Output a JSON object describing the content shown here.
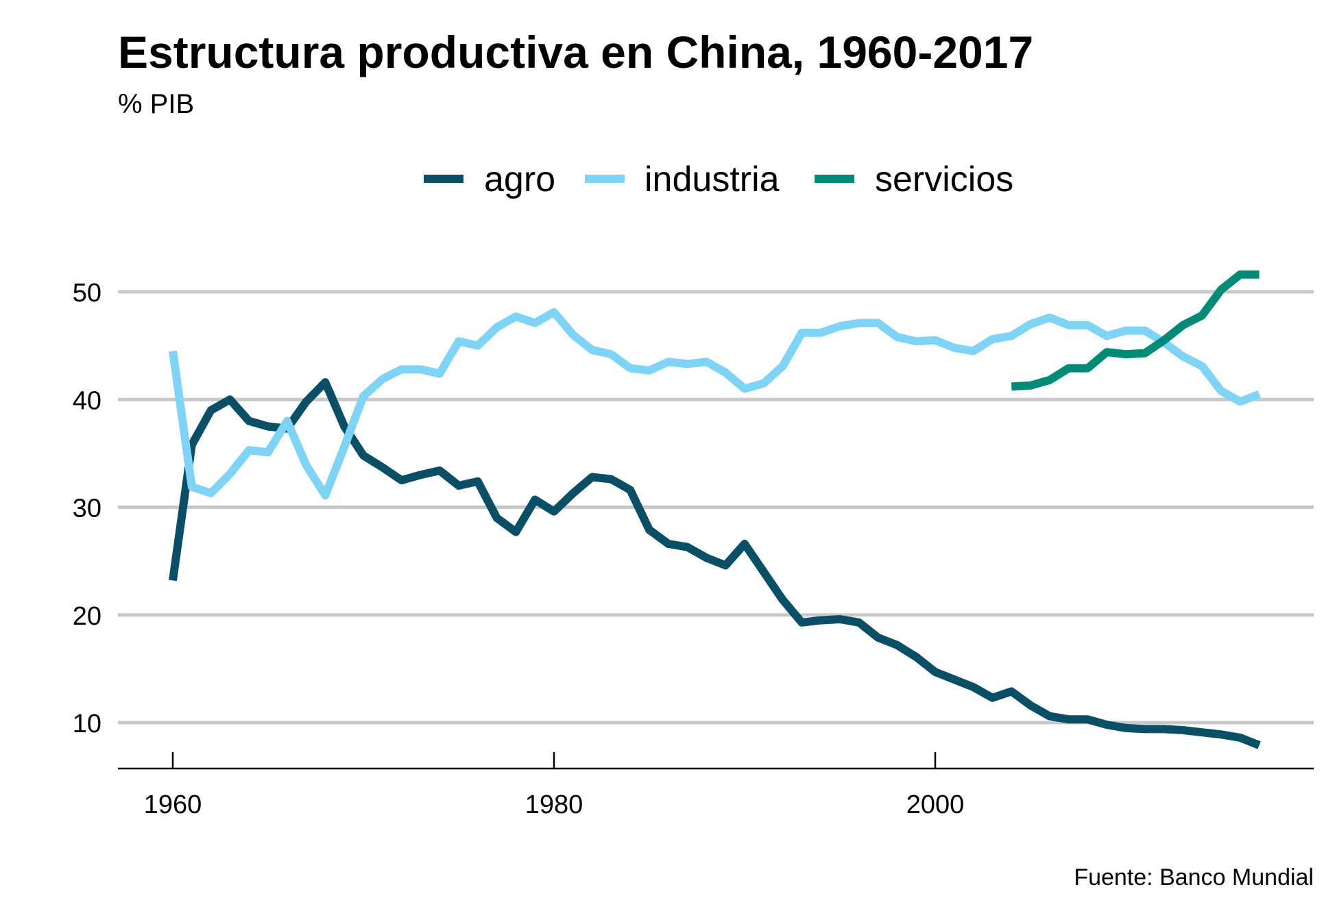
{
  "chart_data": {
    "type": "line",
    "title": "Estructura productiva en China, 1960-2017",
    "subtitle": "% PIB",
    "source": "Fuente: Banco Mundial",
    "xlabel": "",
    "ylabel": "",
    "xlim": [
      1957,
      2020
    ],
    "ylim": [
      5.8,
      55
    ],
    "xticks": [
      1960,
      1980,
      2000
    ],
    "yticks": [
      10,
      20,
      30,
      40,
      50
    ],
    "grid": "horizontal",
    "legend_position": "top",
    "series": [
      {
        "name": "agro",
        "color": "#0b4f66",
        "x": [
          1960,
          1961,
          1962,
          1963,
          1964,
          1965,
          1966,
          1967,
          1968,
          1969,
          1970,
          1971,
          1972,
          1973,
          1974,
          1975,
          1976,
          1977,
          1978,
          1979,
          1980,
          1981,
          1982,
          1983,
          1984,
          1985,
          1986,
          1987,
          1988,
          1989,
          1990,
          1991,
          1992,
          1993,
          1994,
          1995,
          1996,
          1997,
          1998,
          1999,
          2000,
          2001,
          2002,
          2003,
          2004,
          2005,
          2006,
          2007,
          2008,
          2009,
          2010,
          2011,
          2012,
          2013,
          2014,
          2015,
          2016,
          2017
        ],
        "values": [
          23.2,
          35.8,
          39.0,
          40.0,
          38.0,
          37.5,
          37.3,
          39.8,
          41.6,
          37.5,
          34.8,
          33.7,
          32.5,
          33.0,
          33.4,
          32.0,
          32.4,
          29.0,
          27.7,
          30.7,
          29.6,
          31.3,
          32.8,
          32.6,
          31.6,
          27.9,
          26.6,
          26.3,
          25.3,
          24.6,
          26.6,
          24.0,
          21.4,
          19.3,
          19.5,
          19.6,
          19.3,
          17.9,
          17.2,
          16.1,
          14.7,
          14.0,
          13.3,
          12.3,
          12.9,
          11.6,
          10.6,
          10.3,
          10.3,
          9.8,
          9.5,
          9.4,
          9.4,
          9.3,
          9.1,
          8.9,
          8.6,
          7.9
        ]
      },
      {
        "name": "industria",
        "color": "#7fd3f5",
        "x": [
          1960,
          1961,
          1962,
          1963,
          1964,
          1965,
          1966,
          1967,
          1968,
          1969,
          1970,
          1971,
          1972,
          1973,
          1974,
          1975,
          1976,
          1977,
          1978,
          1979,
          1980,
          1981,
          1982,
          1983,
          1984,
          1985,
          1986,
          1987,
          1988,
          1989,
          1990,
          1991,
          1992,
          1993,
          1994,
          1995,
          1996,
          1997,
          1998,
          1999,
          2000,
          2001,
          2002,
          2003,
          2004,
          2005,
          2006,
          2007,
          2008,
          2009,
          2010,
          2011,
          2012,
          2013,
          2014,
          2015,
          2016,
          2017
        ],
        "values": [
          44.5,
          31.9,
          31.3,
          33.1,
          35.3,
          35.1,
          38.0,
          33.9,
          31.1,
          35.6,
          40.3,
          41.9,
          42.8,
          42.8,
          42.4,
          45.4,
          45.0,
          46.7,
          47.7,
          47.1,
          48.1,
          46.0,
          44.6,
          44.2,
          42.9,
          42.7,
          43.5,
          43.3,
          43.5,
          42.5,
          41.0,
          41.5,
          43.1,
          46.2,
          46.2,
          46.8,
          47.1,
          47.1,
          45.8,
          45.4,
          45.5,
          44.8,
          44.5,
          45.6,
          45.9,
          47.0,
          47.6,
          46.9,
          46.9,
          45.9,
          46.4,
          46.4,
          45.3,
          44.0,
          43.1,
          40.8,
          39.8,
          40.5
        ]
      },
      {
        "name": "servicios",
        "color": "#008a78",
        "x": [
          2004,
          2005,
          2006,
          2007,
          2008,
          2009,
          2010,
          2011,
          2012,
          2013,
          2014,
          2015,
          2016,
          2017
        ],
        "values": [
          41.2,
          41.3,
          41.8,
          42.9,
          42.9,
          44.4,
          44.2,
          44.3,
          45.5,
          46.9,
          47.8,
          50.2,
          51.6,
          51.6
        ]
      }
    ]
  }
}
